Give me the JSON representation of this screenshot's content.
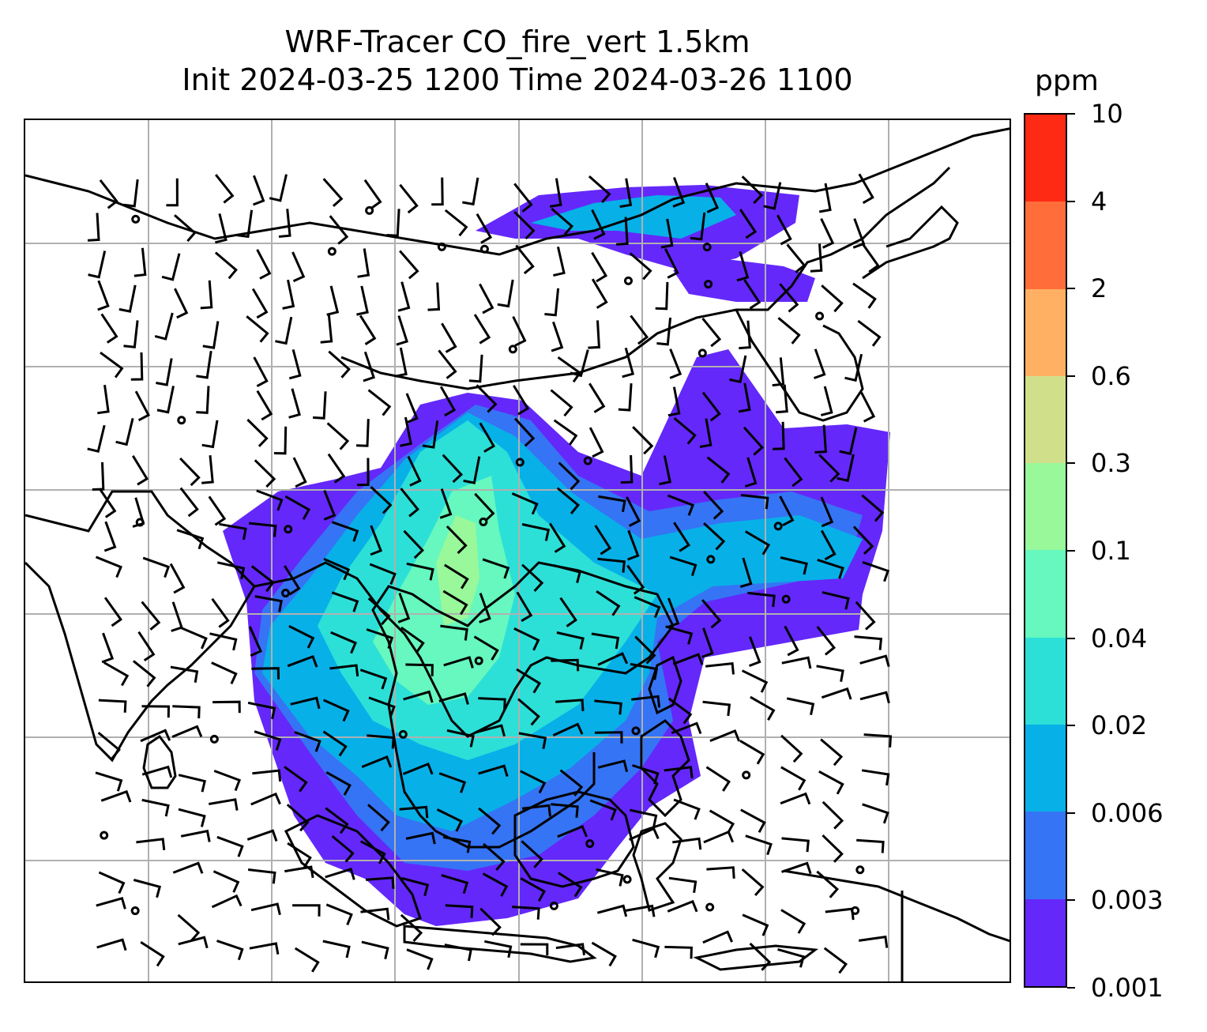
{
  "title_line1": "WRF-Tracer CO_fire_vert 1.5km",
  "title_line2": "Init 2024-03-25 1200 Time 2024-03-26 1100",
  "colorbar": {
    "unit": "ppm",
    "levels": [
      "10",
      "4",
      "2",
      "0.6",
      "0.3",
      "0.1",
      "0.04",
      "0.02",
      "0.006",
      "0.003",
      "0.001"
    ],
    "colors": [
      "#ff2a14",
      "#ff6e3a",
      "#ffb062",
      "#d0e08a",
      "#98f89a",
      "#66f8be",
      "#2ce0d8",
      "#08b0e8",
      "#3574f4",
      "#6428fa"
    ]
  },
  "map": {
    "gridlines": true,
    "coastline_color": "#000000",
    "grid_color": "#b0b0b0",
    "barb_color": "#000000"
  }
}
